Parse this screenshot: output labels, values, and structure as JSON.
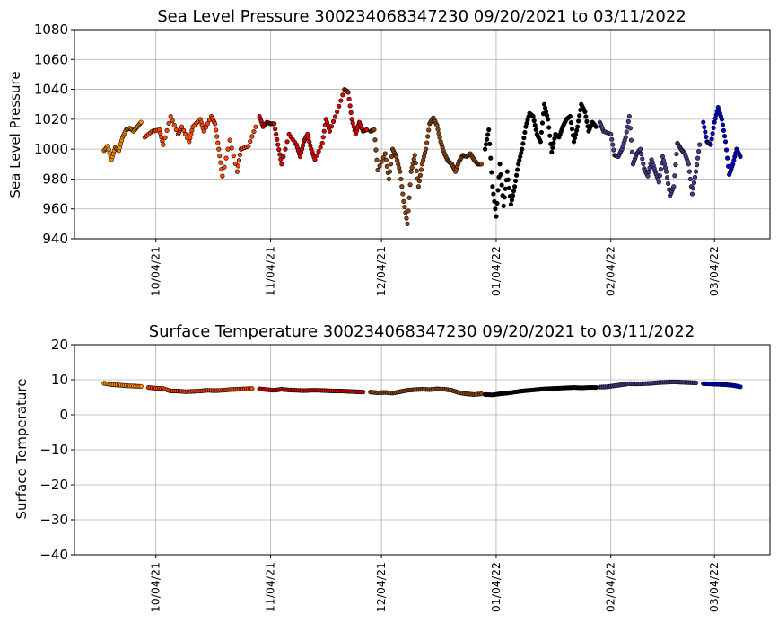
{
  "colors": {
    "sep": "#ff8c00",
    "oct": "#ff4500",
    "nov": "#dd0000",
    "dec": "#8b4513",
    "jan": "#000000",
    "feb": "#483d8b",
    "mar": "#0000cd",
    "outline": "#000000"
  },
  "chart_data": [
    {
      "type": "scatter",
      "title": "Sea Level Pressure 300234068347230  09/20/2021 to 03/11/2022",
      "ylabel": "Sea Level Pressure",
      "xlabel": "",
      "ylim": [
        940,
        1080
      ],
      "yticks": [
        940,
        960,
        980,
        1000,
        1020,
        1040,
        1060,
        1080
      ],
      "xlim": [
        "2021-09-12",
        "2022-03-19"
      ],
      "xticks": [
        "10/04/21",
        "11/04/21",
        "12/04/21",
        "01/04/22",
        "02/04/22",
        "03/04/22"
      ],
      "xtick_dates": [
        "2021-10-04",
        "2021-11-04",
        "2021-12-04",
        "2022-01-04",
        "2022-02-04",
        "2022-03-04"
      ],
      "grid": true,
      "series": [
        {
          "color_key": "sep",
          "x": [
            "2021-09-20",
            "2021-09-21",
            "2021-09-22",
            "2021-09-23",
            "2021-09-24",
            "2021-09-25",
            "2021-09-26",
            "2021-09-27",
            "2021-09-28",
            "2021-09-29",
            "2021-09-30"
          ],
          "y": [
            999,
            1002,
            993,
            1001,
            999,
            1008,
            1013,
            1014,
            1012,
            1015,
            1018
          ]
        },
        {
          "color_key": "oct",
          "x": [
            "2021-10-01",
            "2021-10-03",
            "2021-10-05",
            "2021-10-06",
            "2021-10-08",
            "2021-10-10",
            "2021-10-11",
            "2021-10-13",
            "2021-10-14",
            "2021-10-16",
            "2021-10-17",
            "2021-10-19",
            "2021-10-20",
            "2021-10-21",
            "2021-10-22",
            "2021-10-24",
            "2021-10-26",
            "2021-10-27",
            "2021-10-29",
            "2021-10-31"
          ],
          "y": [
            1008,
            1012,
            1013,
            1003,
            1022,
            1010,
            1015,
            1005,
            1015,
            1020,
            1012,
            1022,
            1017,
            1000,
            982,
            1006,
            985,
            1000,
            1002,
            1015
          ]
        },
        {
          "color_key": "nov",
          "x": [
            "2021-11-01",
            "2021-11-02",
            "2021-11-03",
            "2021-11-04",
            "2021-11-05",
            "2021-11-06",
            "2021-11-07",
            "2021-11-09",
            "2021-11-11",
            "2021-11-12",
            "2021-11-13",
            "2021-11-14",
            "2021-11-15",
            "2021-11-16",
            "2021-11-18",
            "2021-11-19",
            "2021-11-20",
            "2021-11-22",
            "2021-11-24",
            "2021-11-25",
            "2021-11-26",
            "2021-11-27",
            "2021-11-28",
            "2021-11-29",
            "2021-11-30"
          ],
          "y": [
            1022,
            1015,
            1018,
            1017,
            1017,
            1003,
            990,
            1010,
            1003,
            995,
            1005,
            1010,
            1000,
            993,
            1004,
            1020,
            1012,
            1025,
            1040,
            1038,
            1020,
            1010,
            1018,
            1012,
            1013
          ]
        },
        {
          "color_key": "dec",
          "x": [
            "2021-12-01",
            "2021-12-02",
            "2021-12-03",
            "2021-12-05",
            "2021-12-06",
            "2021-12-07",
            "2021-12-08",
            "2021-12-09",
            "2021-12-10",
            "2021-12-11",
            "2021-12-12",
            "2021-12-13",
            "2021-12-14",
            "2021-12-15",
            "2021-12-16",
            "2021-12-17",
            "2021-12-18",
            "2021-12-19",
            "2021-12-20",
            "2021-12-21",
            "2021-12-22",
            "2021-12-23",
            "2021-12-24",
            "2021-12-25",
            "2021-12-26",
            "2021-12-27",
            "2021-12-28",
            "2021-12-29",
            "2021-12-30",
            "2021-12-31"
          ],
          "y": [
            1012,
            1013,
            986,
            997,
            980,
            1000,
            995,
            985,
            965,
            950,
            985,
            996,
            975,
            990,
            1000,
            1017,
            1021,
            1016,
            1005,
            997,
            992,
            990,
            985,
            992,
            996,
            995,
            997,
            993,
            990,
            990
          ]
        },
        {
          "color_key": "jan",
          "x": [
            "2022-01-01",
            "2022-01-02",
            "2022-01-03",
            "2022-01-04",
            "2022-01-05",
            "2022-01-06",
            "2022-01-07",
            "2022-01-08",
            "2022-01-09",
            "2022-01-10",
            "2022-01-11",
            "2022-01-12",
            "2022-01-13",
            "2022-01-14",
            "2022-01-15",
            "2022-01-16",
            "2022-01-17",
            "2022-01-18",
            "2022-01-19",
            "2022-01-20",
            "2022-01-21",
            "2022-01-22",
            "2022-01-23",
            "2022-01-24",
            "2022-01-25",
            "2022-01-26",
            "2022-01-27",
            "2022-01-28",
            "2022-01-29",
            "2022-01-30",
            "2022-01-31"
          ],
          "y": [
            1000,
            1013,
            975,
            955,
            990,
            962,
            985,
            963,
            975,
            990,
            1000,
            1015,
            1024,
            1022,
            1010,
            1005,
            1030,
            1020,
            998,
            1010,
            1008,
            1015,
            1020,
            1022,
            1005,
            1015,
            1030,
            1025,
            1012,
            1018,
            1015
          ]
        },
        {
          "color_key": "feb",
          "x": [
            "2022-02-01",
            "2022-02-02",
            "2022-02-04",
            "2022-02-05",
            "2022-02-06",
            "2022-02-07",
            "2022-02-08",
            "2022-02-09",
            "2022-02-10",
            "2022-02-11",
            "2022-02-12",
            "2022-02-13",
            "2022-02-14",
            "2022-02-15",
            "2022-02-16",
            "2022-02-17",
            "2022-02-18",
            "2022-02-19",
            "2022-02-20",
            "2022-02-21",
            "2022-02-22",
            "2022-02-23",
            "2022-02-24",
            "2022-02-25",
            "2022-02-26",
            "2022-02-27",
            "2022-02-28"
          ],
          "y": [
            1018,
            1012,
            1010,
            996,
            995,
            1000,
            1008,
            1022,
            990,
            997,
            1000,
            987,
            982,
            993,
            985,
            978,
            995,
            985,
            969,
            975,
            1004,
            1000,
            997,
            990,
            970,
            985,
            1003
          ]
        },
        {
          "color_key": "mar",
          "x": [
            "2022-03-01",
            "2022-03-02",
            "2022-03-03",
            "2022-03-04",
            "2022-03-05",
            "2022-03-06",
            "2022-03-07",
            "2022-03-08",
            "2022-03-09",
            "2022-03-10",
            "2022-03-11"
          ],
          "y": [
            1018,
            1005,
            1003,
            1018,
            1028,
            1020,
            1005,
            983,
            990,
            1000,
            995
          ]
        }
      ]
    },
    {
      "type": "scatter",
      "title": "Surface Temperature 300234068347230  09/20/2021 to 03/11/2022",
      "ylabel": "Surface Temperature",
      "xlabel": "",
      "ylim": [
        -40,
        20
      ],
      "yticks": [
        -40,
        -30,
        -20,
        -10,
        0,
        10,
        20
      ],
      "xlim": [
        "2021-09-12",
        "2022-03-19"
      ],
      "xticks": [
        "10/04/21",
        "11/04/21",
        "12/04/21",
        "01/04/22",
        "02/04/22",
        "03/04/22"
      ],
      "xtick_dates": [
        "2021-10-04",
        "2021-11-04",
        "2021-12-04",
        "2022-01-04",
        "2022-02-04",
        "2022-03-04"
      ],
      "grid": true,
      "series": [
        {
          "color_key": "sep",
          "x": [
            "2021-09-20",
            "2021-09-22",
            "2021-09-24",
            "2021-09-26",
            "2021-09-28",
            "2021-09-30"
          ],
          "y": [
            9.0,
            8.6,
            8.5,
            8.3,
            8.2,
            8.1
          ]
        },
        {
          "color_key": "oct",
          "x": [
            "2021-10-02",
            "2021-10-04",
            "2021-10-06",
            "2021-10-08",
            "2021-10-10",
            "2021-10-12",
            "2021-10-14",
            "2021-10-16",
            "2021-10-18",
            "2021-10-20",
            "2021-10-22",
            "2021-10-24",
            "2021-10-26",
            "2021-10-28",
            "2021-10-30"
          ],
          "y": [
            7.8,
            7.6,
            7.5,
            6.8,
            6.8,
            6.6,
            6.7,
            6.8,
            7.0,
            6.9,
            7.0,
            7.2,
            7.3,
            7.4,
            7.5
          ]
        },
        {
          "color_key": "nov",
          "x": [
            "2021-11-01",
            "2021-11-03",
            "2021-11-05",
            "2021-11-07",
            "2021-11-09",
            "2021-11-11",
            "2021-11-13",
            "2021-11-15",
            "2021-11-17",
            "2021-11-19",
            "2021-11-21",
            "2021-11-23",
            "2021-11-25",
            "2021-11-27",
            "2021-11-29"
          ],
          "y": [
            7.4,
            7.2,
            7.0,
            7.3,
            7.1,
            7.0,
            6.9,
            7.0,
            7.0,
            6.9,
            6.8,
            6.8,
            6.7,
            6.6,
            6.5
          ]
        },
        {
          "color_key": "dec",
          "x": [
            "2021-12-01",
            "2021-12-03",
            "2021-12-05",
            "2021-12-07",
            "2021-12-09",
            "2021-12-11",
            "2021-12-13",
            "2021-12-15",
            "2021-12-17",
            "2021-12-19",
            "2021-12-21",
            "2021-12-23",
            "2021-12-25",
            "2021-12-27",
            "2021-12-29",
            "2021-12-31"
          ],
          "y": [
            6.5,
            6.3,
            6.4,
            6.2,
            6.6,
            7.0,
            7.2,
            7.3,
            7.2,
            7.4,
            7.3,
            7.0,
            6.3,
            6.0,
            5.8,
            6.0
          ]
        },
        {
          "color_key": "jan",
          "x": [
            "2022-01-01",
            "2022-01-03",
            "2022-01-05",
            "2022-01-07",
            "2022-01-09",
            "2022-01-11",
            "2022-01-13",
            "2022-01-15",
            "2022-01-17",
            "2022-01-19",
            "2022-01-21",
            "2022-01-23",
            "2022-01-25",
            "2022-01-27",
            "2022-01-29",
            "2022-01-31"
          ],
          "y": [
            5.8,
            5.7,
            6.0,
            6.2,
            6.5,
            6.8,
            7.0,
            7.2,
            7.4,
            7.5,
            7.6,
            7.7,
            7.8,
            7.7,
            7.8,
            7.8
          ]
        },
        {
          "color_key": "feb",
          "x": [
            "2022-02-01",
            "2022-02-03",
            "2022-02-05",
            "2022-02-07",
            "2022-02-09",
            "2022-02-11",
            "2022-02-13",
            "2022-02-15",
            "2022-02-17",
            "2022-02-19",
            "2022-02-21",
            "2022-02-23",
            "2022-02-25",
            "2022-02-27"
          ],
          "y": [
            7.9,
            8.0,
            8.3,
            8.6,
            8.9,
            8.8,
            8.9,
            9.0,
            9.2,
            9.3,
            9.4,
            9.3,
            9.2,
            9.1
          ]
        },
        {
          "color_key": "mar",
          "x": [
            "2022-03-01",
            "2022-03-03",
            "2022-03-05",
            "2022-03-07",
            "2022-03-09",
            "2022-03-11"
          ],
          "y": [
            8.9,
            8.8,
            8.7,
            8.6,
            8.4,
            8.0
          ]
        }
      ]
    }
  ]
}
